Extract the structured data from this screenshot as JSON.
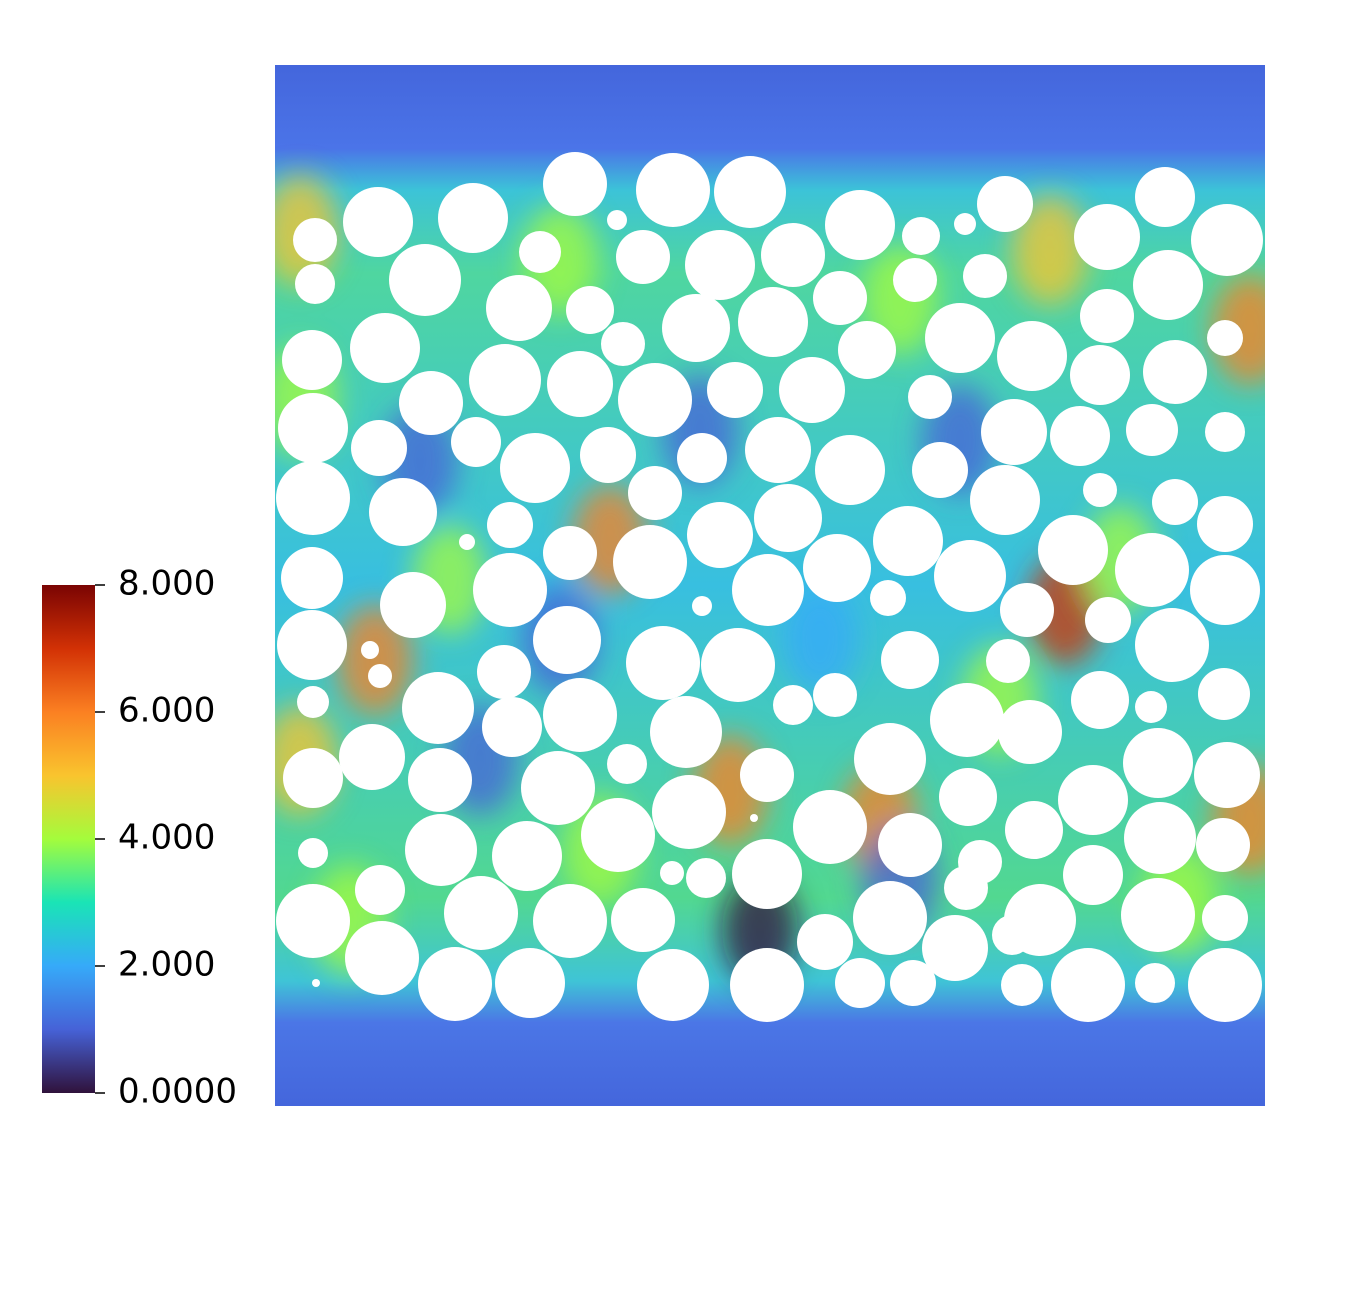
{
  "chart_data": {
    "type": "field",
    "colormap": [
      "#30123b",
      "#4662d7",
      "#36aaf9",
      "#1ae4b6",
      "#a4fc3c",
      "#f9c42e",
      "#fb8022",
      "#d23105",
      "#7a0403"
    ],
    "clim": [
      0,
      8
    ],
    "ticks": [
      {
        "value": 0,
        "label": "0.0000"
      },
      {
        "value": 2,
        "label": "2.000"
      },
      {
        "value": 4,
        "label": "4.000"
      },
      {
        "value": 6,
        "label": "6.000"
      },
      {
        "value": 8,
        "label": "8.000"
      }
    ]
  }
}
